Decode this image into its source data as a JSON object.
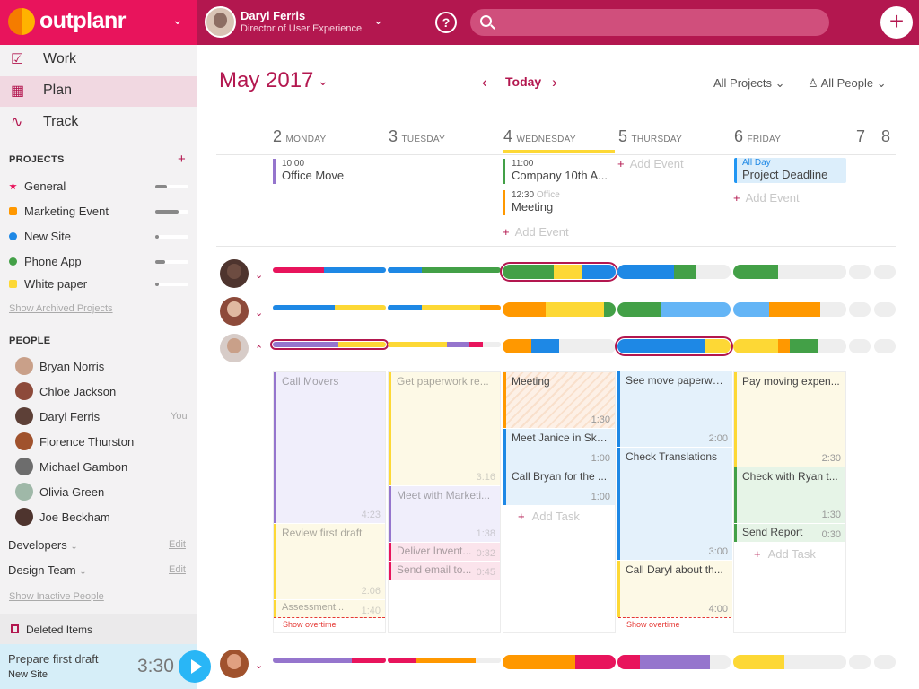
{
  "app": {
    "logo_text": "outplanr"
  },
  "header": {
    "user_name": "Daryl Ferris",
    "user_role": "Director of User Experience",
    "help_label": "?",
    "add_label": "+"
  },
  "nav": [
    {
      "label": "Work",
      "icon": "checkbox-edit-icon"
    },
    {
      "label": "Plan",
      "icon": "calendar-clock-icon"
    },
    {
      "label": "Track",
      "icon": "pulse-icon"
    }
  ],
  "projects": {
    "title": "PROJECTS",
    "add_label": "+",
    "items": [
      {
        "label": "General",
        "color": "#e8145c",
        "progress": 0.35
      },
      {
        "label": "Marketing Event",
        "color": "#ff9800",
        "progress": 0.7
      },
      {
        "label": "New Site",
        "color": "#1e88e5",
        "progress": 0.1
      },
      {
        "label": "Phone App",
        "color": "#43a047",
        "progress": 0.3
      },
      {
        "label": "White paper",
        "color": "#fdd835",
        "progress": 0.1
      }
    ],
    "archived_link": "Show Archived Projects"
  },
  "people": {
    "title": "PEOPLE",
    "items": [
      {
        "label": "Bryan Norris",
        "you": ""
      },
      {
        "label": "Chloe Jackson",
        "you": ""
      },
      {
        "label": "Daryl Ferris",
        "you": "You"
      },
      {
        "label": "Florence Thurston",
        "you": ""
      },
      {
        "label": "Michael Gambon",
        "you": ""
      },
      {
        "label": "Olivia Green",
        "you": ""
      },
      {
        "label": "Joe Beckham",
        "you": ""
      }
    ],
    "teams": [
      {
        "label": "Developers",
        "edit": "Edit"
      },
      {
        "label": "Design Team",
        "edit": "Edit"
      }
    ],
    "inactive_link": "Show Inactive People"
  },
  "deleted_label": "Deleted Items",
  "timer": {
    "task": "Prepare first draft",
    "project": "New Site",
    "time": "3:30"
  },
  "calendar": {
    "month": "May 2017",
    "today_label": "Today",
    "filter_projects": "All  Projects",
    "filter_people": "All People",
    "days": [
      {
        "num": "2",
        "name": "MONDAY"
      },
      {
        "num": "3",
        "name": "TUESDAY"
      },
      {
        "num": "4",
        "name": "WEDNESDAY"
      },
      {
        "num": "5",
        "name": "THURSDAY"
      },
      {
        "num": "6",
        "name": "FRIDAY"
      },
      {
        "num": "7",
        "name": ""
      },
      {
        "num": "8",
        "name": ""
      }
    ],
    "events": {
      "mon": {
        "time": "10:00",
        "title": "Office Move"
      },
      "wed1": {
        "time": "11:00",
        "title": "Company 10th A..."
      },
      "wed2": {
        "time": "12:30",
        "tag": "Office",
        "title": "Meeting"
      },
      "fri_allday": {
        "tag": "All Day",
        "title": "Project Deadline"
      },
      "add_label": "Add Event"
    },
    "tasks": {
      "mon": [
        {
          "title": "Call Movers",
          "dur": "4:23"
        },
        {
          "title": "Review first draft",
          "dur": "2:06"
        },
        {
          "title": "Assessment...",
          "dur": "1:40"
        }
      ],
      "tue": [
        {
          "title": "Get paperwork re...",
          "dur": "3:16"
        },
        {
          "title": "Meet with Marketi...",
          "dur": "1:38"
        },
        {
          "title": "Deliver Invent...",
          "dur": "0:32"
        },
        {
          "title": "Send email to...",
          "dur": "0:45"
        }
      ],
      "wed": [
        {
          "title": "Meeting",
          "dur": "1:30"
        },
        {
          "title": "Meet Janice in Sky...",
          "dur": "1:00"
        },
        {
          "title": "Call Bryan for the ...",
          "dur": "1:00"
        }
      ],
      "thu": [
        {
          "title": "See move paperwo...",
          "dur": "2:00"
        },
        {
          "title": "Check Translations",
          "dur": "3:00"
        },
        {
          "title": "Call Daryl about th...",
          "dur": "4:00"
        }
      ],
      "fri": [
        {
          "title": "Pay moving expen...",
          "dur": "2:30"
        },
        {
          "title": "Check with Ryan t...",
          "dur": "1:30"
        },
        {
          "title": "Send Report",
          "dur": "0:30"
        }
      ],
      "overtime_label": "Show overtime",
      "add_label": "Add Task"
    }
  },
  "colors": {
    "brand": "#b3174f",
    "logo": "#e8145c",
    "purple": "#9575cd",
    "blue": "#1e88e5",
    "green": "#43a047",
    "yellow": "#fdd835",
    "orange": "#ff9800",
    "pink": "#e8145c",
    "lightblue": "#64b5f6"
  }
}
